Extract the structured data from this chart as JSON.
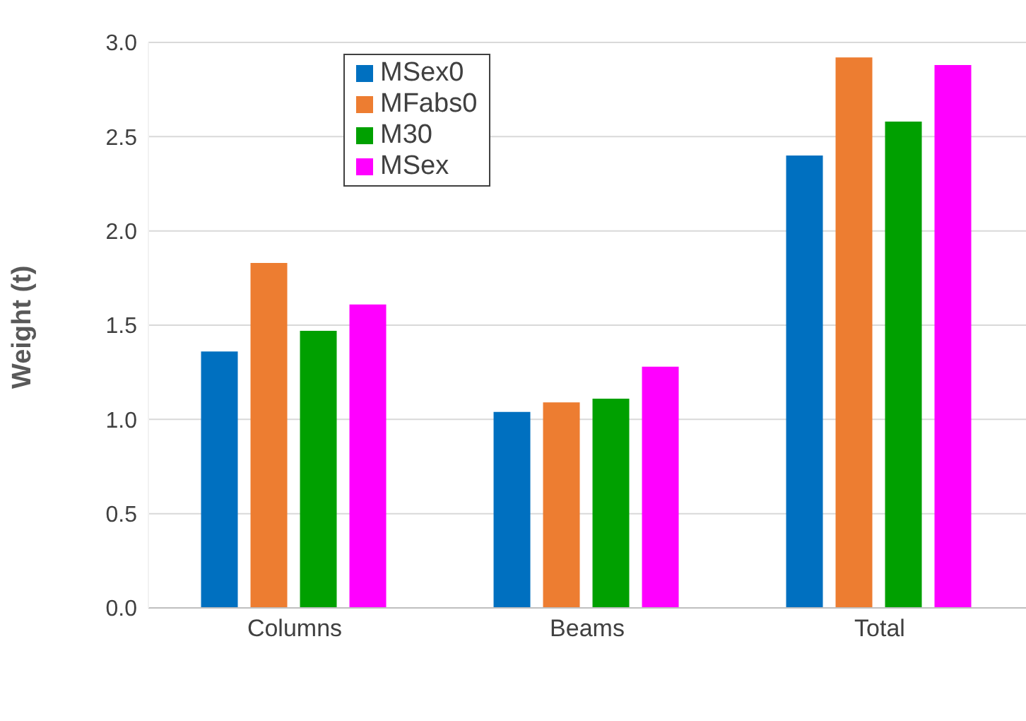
{
  "chart_data": {
    "type": "bar",
    "ylabel": "Weight (t)",
    "categories": [
      "Columns",
      "Beams",
      "Total"
    ],
    "series": [
      {
        "name": "MSex0",
        "color": "#0070c0",
        "values": [
          1.36,
          1.04,
          2.4
        ]
      },
      {
        "name": "MFabs0",
        "color": "#ed7d31",
        "values": [
          1.83,
          1.09,
          2.92
        ]
      },
      {
        "name": "M30",
        "color": "#00a000",
        "values": [
          1.47,
          1.11,
          2.58
        ]
      },
      {
        "name": "MSex",
        "color": "#ff00ff",
        "values": [
          1.61,
          1.28,
          2.88
        ]
      }
    ],
    "ylim": [
      0,
      3
    ],
    "yticks": [
      {
        "value": 0,
        "label": "0.0"
      },
      0.5,
      {
        "value": 1,
        "label": "1.0"
      },
      1.5,
      {
        "value": 2,
        "label": "2.0"
      },
      2.5,
      {
        "value": 3,
        "label": "3.0"
      }
    ],
    "grid": "y",
    "legend": "top left"
  }
}
